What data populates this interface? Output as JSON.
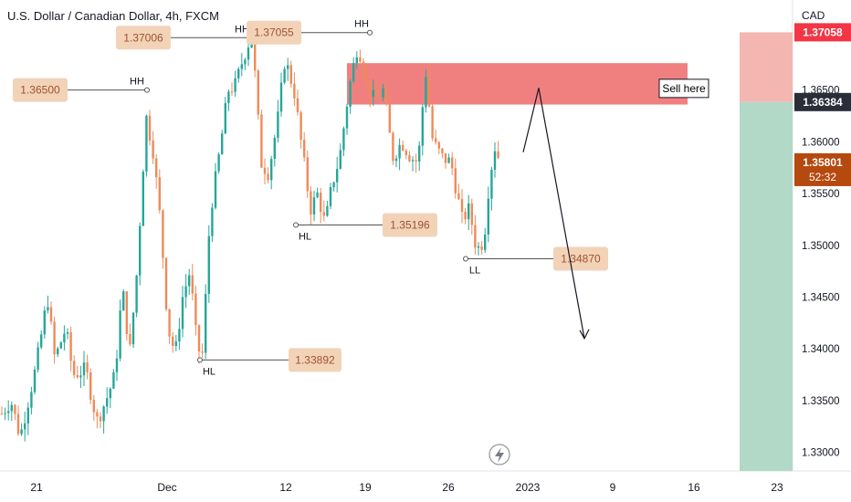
{
  "header": {
    "title": "U.S. Dollar / Canadian Dollar, 4h, FXCM",
    "currency": "CAD"
  },
  "colors": {
    "up": "#26a69a",
    "down": "#ef8a5a",
    "zone": "#f08080",
    "sell_box": "#f4b6b0",
    "sell_box_green": "#b2d8c8",
    "price_red": "#f23645",
    "price_dark": "#2a2e39",
    "price_current": "#b5490f",
    "label_bg": "#f2d3b8"
  },
  "chart_data": {
    "type": "candlestick",
    "x_tick_labels": [
      "21",
      "Dec",
      "12",
      "19",
      "26",
      "2023",
      "9",
      "16",
      "23"
    ],
    "y_tick_labels": [
      "1.36500",
      "1.36000",
      "1.35500",
      "1.35000",
      "1.34500",
      "1.34000",
      "1.33500",
      "1.33000"
    ],
    "y_ticks": [
      1.365,
      1.36,
      1.355,
      1.35,
      1.345,
      1.34,
      1.335,
      1.33
    ],
    "ylim": [
      1.3282,
      1.3737
    ],
    "candle_anchors": [
      [
        0,
        1.3335
      ],
      [
        12,
        1.335
      ],
      [
        22,
        1.3315
      ],
      [
        40,
        1.3385
      ],
      [
        52,
        1.345
      ],
      [
        60,
        1.339
      ],
      [
        72,
        1.342
      ],
      [
        80,
        1.3375
      ],
      [
        94,
        1.338
      ],
      [
        106,
        1.333
      ],
      [
        116,
        1.335
      ],
      [
        126,
        1.3375
      ],
      [
        134,
        1.346
      ],
      [
        142,
        1.3395
      ],
      [
        150,
        1.3475
      ],
      [
        160,
        1.3625
      ],
      [
        168,
        1.359
      ],
      [
        176,
        1.352
      ],
      [
        184,
        1.342
      ],
      [
        192,
        1.3395
      ],
      [
        200,
        1.345
      ],
      [
        208,
        1.3475
      ],
      [
        216,
        1.34
      ],
      [
        222,
        1.3395
      ],
      [
        230,
        1.353
      ],
      [
        238,
        1.3575
      ],
      [
        250,
        1.365
      ],
      [
        258,
        1.3655
      ],
      [
        266,
        1.368
      ],
      [
        276,
        1.3705
      ],
      [
        286,
        1.358
      ],
      [
        294,
        1.357
      ],
      [
        304,
        1.362
      ],
      [
        312,
        1.368
      ],
      [
        322,
        1.365
      ],
      [
        332,
        1.3585
      ],
      [
        340,
        1.3535
      ],
      [
        348,
        1.355
      ],
      [
        356,
        1.352
      ],
      [
        364,
        1.356
      ],
      [
        372,
        1.3585
      ],
      [
        382,
        1.365
      ],
      [
        392,
        1.3695
      ],
      [
        402,
        1.3655
      ],
      [
        410,
        1.364
      ],
      [
        420,
        1.365
      ],
      [
        430,
        1.3585
      ],
      [
        440,
        1.36
      ],
      [
        450,
        1.3585
      ],
      [
        458,
        1.358
      ],
      [
        466,
        1.367
      ],
      [
        474,
        1.36
      ],
      [
        484,
        1.3585
      ],
      [
        494,
        1.358
      ],
      [
        506,
        1.3525
      ],
      [
        514,
        1.3535
      ],
      [
        522,
        1.3495
      ],
      [
        530,
        1.3505
      ],
      [
        536,
        1.3565
      ],
      [
        542,
        1.3595
      ],
      [
        548,
        1.358
      ]
    ],
    "levels": [
      {
        "label": "1.36500",
        "value": 1.365,
        "point": "HH"
      },
      {
        "label": "1.37006",
        "value": 1.37006,
        "point": "HH"
      },
      {
        "label": "1.37055",
        "value": 1.37055,
        "point": "HH"
      },
      {
        "label": "1.35196",
        "value": 1.35196,
        "point": "HL"
      },
      {
        "label": "1.34870",
        "value": 1.3487,
        "point": "LL"
      },
      {
        "label": "1.33892",
        "value": 1.33892,
        "point": "HL"
      }
    ],
    "point_labels": [
      "HH",
      "HH",
      "HH",
      "HL",
      "LL",
      "HL"
    ],
    "sell_zone": {
      "top": 1.3676,
      "bottom": 1.3636
    },
    "annotation": "Sell here",
    "price_badges": [
      {
        "label": "1.37058",
        "value": 1.37058
      },
      {
        "label": "1.36384",
        "value": 1.36384
      }
    ],
    "current_price": {
      "label": "1.35801",
      "countdown": "52:32",
      "value": 1.35801
    },
    "projection": [
      [
        1.359,
        1.3652
      ],
      [
        1.3652,
        1.341
      ]
    ]
  }
}
